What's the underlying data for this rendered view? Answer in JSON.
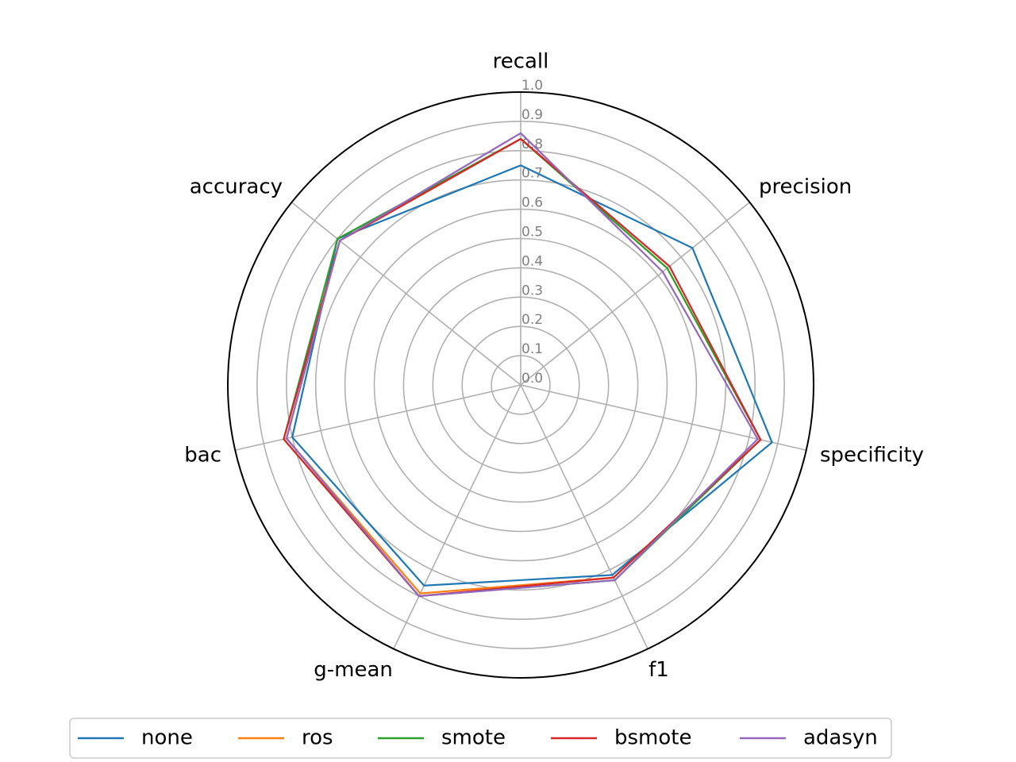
{
  "chart_data": {
    "type": "radar",
    "axes": [
      "recall",
      "precision",
      "specificity",
      "f1",
      "g-mean",
      "bac",
      "accuracy"
    ],
    "rlim": [
      0,
      1.0
    ],
    "rticks": [
      "0.0",
      "0.1",
      "0.2",
      "0.3",
      "0.4",
      "0.5",
      "0.6",
      "0.7",
      "0.8",
      "0.9",
      "1.0"
    ],
    "grid": true,
    "legend": "bottom",
    "series": [
      {
        "name": "none",
        "color": "#1f77b4",
        "values": [
          0.75,
          0.75,
          0.88,
          0.72,
          0.76,
          0.8,
          0.8
        ]
      },
      {
        "name": "ros",
        "color": "#ff7f0e",
        "values": [
          0.84,
          0.64,
          0.84,
          0.73,
          0.79,
          0.82,
          0.79
        ]
      },
      {
        "name": "smote",
        "color": "#2ca02c",
        "values": [
          0.84,
          0.64,
          0.84,
          0.74,
          0.8,
          0.83,
          0.8
        ]
      },
      {
        "name": "bsmote",
        "color": "#d62728",
        "values": [
          0.84,
          0.65,
          0.84,
          0.73,
          0.8,
          0.83,
          0.79
        ]
      },
      {
        "name": "adasyn",
        "color": "#9467bd",
        "values": [
          0.86,
          0.62,
          0.83,
          0.74,
          0.8,
          0.82,
          0.79
        ]
      }
    ]
  }
}
